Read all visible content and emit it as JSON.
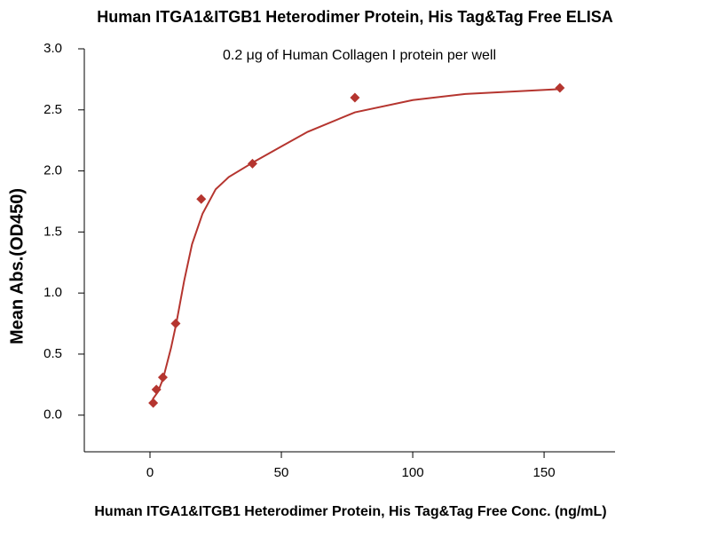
{
  "chart_data": {
    "type": "scatter",
    "title": "Human ITGA1&ITGB1 Heterodimer Protein, His Tag&Tag Free ELISA",
    "subtitle": "0.2 μg of Human Collagen I protein  per well",
    "x_label": "Human ITGA1&ITGB1 Heterodimer Protein, His Tag&Tag Free Conc. (ng/mL)",
    "y_label": "Mean Abs.(OD450)",
    "color": "#b5352f",
    "x": [
      1.22,
      2.44,
      4.88,
      9.77,
      19.5,
      39,
      78,
      156
    ],
    "values": [
      0.1,
      0.21,
      0.31,
      0.75,
      1.77,
      2.06,
      2.6,
      2.68
    ],
    "fit": {
      "color": "#b5352f",
      "x": [
        1,
        3,
        5,
        8,
        10,
        13,
        16,
        20,
        25,
        30,
        40,
        50,
        60,
        78,
        100,
        120,
        156
      ],
      "values": [
        0.13,
        0.19,
        0.3,
        0.55,
        0.75,
        1.1,
        1.4,
        1.65,
        1.85,
        1.95,
        2.08,
        2.2,
        2.32,
        2.48,
        2.58,
        2.63,
        2.67
      ]
    },
    "xlim": [
      -25,
      177
    ],
    "ylim": [
      -0.3,
      3.0
    ],
    "xticks": [
      0,
      50,
      100,
      150
    ],
    "yticks": [
      {
        "value": 0,
        "label": "0.0"
      },
      {
        "value": 0.5,
        "label": "0.5"
      },
      {
        "value": 1,
        "label": "1.0"
      },
      {
        "value": 1.5,
        "label": "1.5"
      },
      {
        "value": 2,
        "label": "2.0"
      },
      {
        "value": 2.5,
        "label": "2.5"
      },
      {
        "value": 3,
        "label": "3.0"
      }
    ]
  }
}
